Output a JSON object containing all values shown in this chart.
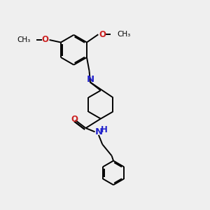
{
  "bg_color": "#efefef",
  "bond_color": "#000000",
  "N_color": "#2222cc",
  "O_color": "#cc2222",
  "NH_color": "#2222cc",
  "line_width": 1.4,
  "font_size": 8.5,
  "figsize": [
    3.0,
    3.0
  ],
  "dpi": 100,
  "xlim": [
    0,
    10
  ],
  "ylim": [
    0,
    10
  ]
}
